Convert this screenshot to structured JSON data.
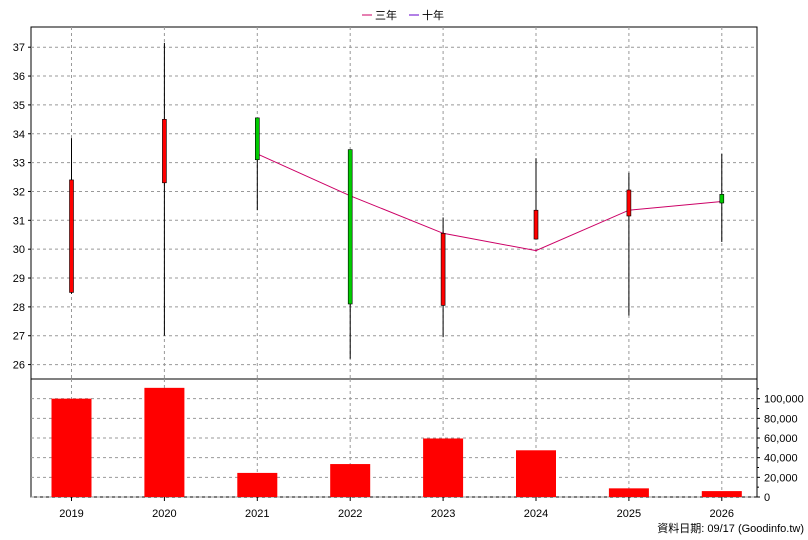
{
  "chart_data": [
    {
      "type": "candlestick",
      "legend": {
        "position": "top-center",
        "entries": [
          {
            "name": "三年",
            "color": "#cc0066"
          },
          {
            "name": "十年",
            "color": "#6600cc"
          }
        ]
      },
      "y_ticks": [
        26,
        27,
        28,
        29,
        30,
        31,
        32,
        33,
        34,
        35,
        36,
        37
      ],
      "ylim": [
        25.5,
        37.7
      ],
      "grid": true,
      "categories": [
        "2019",
        "2020",
        "2021",
        "2022",
        "2023",
        "2024",
        "2025",
        "2026"
      ],
      "candles": [
        {
          "x": "2019",
          "open": 32.4,
          "high": 33.85,
          "low": 28.45,
          "close": 28.5
        },
        {
          "x": "2020",
          "open": 34.5,
          "high": 37.15,
          "low": 27.0,
          "close": 32.3
        },
        {
          "x": "2021",
          "open": 33.1,
          "high": 34.55,
          "low": 31.35,
          "close": 34.55
        },
        {
          "x": "2022",
          "open": 28.1,
          "high": 33.45,
          "low": 26.2,
          "close": 33.45
        },
        {
          "x": "2023",
          "open": 30.55,
          "high": 31.1,
          "low": 26.95,
          "close": 28.05
        },
        {
          "x": "2024",
          "open": 31.35,
          "high": 33.15,
          "low": 30.35,
          "close": 30.35
        },
        {
          "x": "2025",
          "open": 32.05,
          "high": 32.65,
          "low": 27.7,
          "close": 31.15
        },
        {
          "x": "2026",
          "open": 31.6,
          "high": 33.3,
          "low": 30.25,
          "close": 31.9
        }
      ],
      "colors": {
        "up": "#00cc00",
        "down": "#ff0000",
        "wick": "#000000"
      },
      "series": [
        {
          "name": "三年",
          "color": "#cc0066",
          "points": [
            {
              "x": "2021",
              "y": 33.3
            },
            {
              "x": "2022",
              "y": 31.85
            },
            {
              "x": "2023",
              "y": 30.55
            },
            {
              "x": "2024",
              "y": 29.95
            },
            {
              "x": "2025",
              "y": 31.35
            },
            {
              "x": "2026",
              "y": 31.65
            }
          ]
        }
      ]
    },
    {
      "type": "bar",
      "categories": [
        "2019",
        "2020",
        "2021",
        "2022",
        "2023",
        "2024",
        "2025",
        "2026"
      ],
      "values": [
        100000,
        111000,
        24500,
        33500,
        59500,
        47500,
        8800,
        6000
      ],
      "ylim": [
        0,
        120000
      ],
      "y_ticks": [
        "0",
        "20,000",
        "40,000",
        "60,000",
        "80,000",
        "100,000"
      ],
      "bar_color": "#ff0000",
      "grid": true
    }
  ],
  "footer": {
    "source": "資料日期: 09/17  (Goodinfo.tw)"
  }
}
